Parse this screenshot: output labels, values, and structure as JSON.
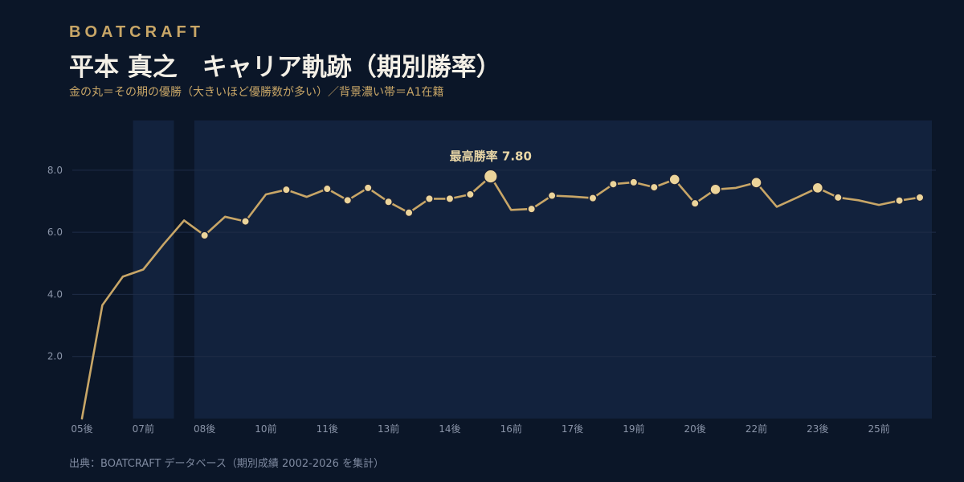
{
  "header": {
    "brand": "BOATCRAFT",
    "title": "平本 真之　キャリア軌跡（期別勝率）",
    "subtitle": "金の丸＝その期の優勝（大きいほど優勝数が多い）／背景濃い帯＝A1在籍"
  },
  "footer": {
    "source": "出典：BOATCRAFT データベース（期別成績 2002-2026 を集計）"
  },
  "colors": {
    "background": "#0b1628",
    "a1_band": "#12223d",
    "line": "#c8a667",
    "dot_fill": "#ecd49a",
    "dot_stroke": "#1a2238",
    "gridline": "#1f2d47"
  },
  "chart_data": {
    "type": "line",
    "title": "平本 真之　キャリア軌跡（期別勝率）",
    "xlabel": "",
    "ylabel": "",
    "ylim": [
      0,
      9.6
    ],
    "yticks": [
      "2.0",
      "4.0",
      "6.0",
      "8.0"
    ],
    "grid": true,
    "x_labels": [
      "05後",
      "07前",
      "08後",
      "10前",
      "11後",
      "13前",
      "14後",
      "16前",
      "17後",
      "19前",
      "20後",
      "22前",
      "23後",
      "25前"
    ],
    "x_label_index": [
      0,
      3,
      6,
      9,
      12,
      15,
      18,
      21,
      24,
      27,
      30,
      33,
      36,
      39
    ],
    "periods": [
      "05後",
      "06前",
      "06後",
      "07前",
      "07後",
      "08前",
      "08後",
      "09前",
      "09後",
      "10前",
      "10後",
      "11前",
      "11後",
      "12前",
      "12後",
      "13前",
      "13後",
      "14前",
      "14後",
      "15前",
      "15後",
      "16前",
      "16後",
      "17前",
      "17後",
      "18前",
      "18後",
      "19前",
      "19後",
      "20前",
      "20後",
      "21前",
      "21後",
      "22前",
      "22後",
      "23前",
      "23後",
      "24前",
      "24後",
      "25前",
      "25後",
      "26前"
    ],
    "values": [
      0.0,
      3.65,
      4.57,
      4.8,
      5.62,
      6.38,
      5.9,
      6.5,
      6.35,
      7.22,
      7.37,
      7.14,
      7.4,
      7.03,
      7.43,
      6.98,
      6.63,
      7.08,
      7.08,
      7.22,
      7.8,
      6.72,
      6.75,
      7.18,
      7.15,
      7.1,
      7.55,
      7.61,
      7.45,
      7.7,
      6.93,
      7.38,
      7.43,
      7.6,
      6.82,
      7.12,
      7.43,
      7.12,
      7.03,
      6.88,
      7.02,
      7.12
    ],
    "wins": [
      0,
      0,
      0,
      0,
      0,
      0,
      1,
      0,
      1,
      0,
      1,
      0,
      1,
      1,
      1,
      1,
      1,
      1,
      1,
      1,
      3,
      0,
      1,
      1,
      0,
      1,
      1,
      1,
      1,
      2,
      1,
      2,
      0,
      2,
      0,
      0,
      2,
      1,
      0,
      0,
      1,
      1
    ],
    "a1_bands": [
      [
        "07前",
        "07後"
      ],
      [
        "08後",
        "26前"
      ]
    ],
    "annotation": {
      "text": "最高勝率 7.80",
      "period": "15後",
      "value": 7.8
    }
  }
}
